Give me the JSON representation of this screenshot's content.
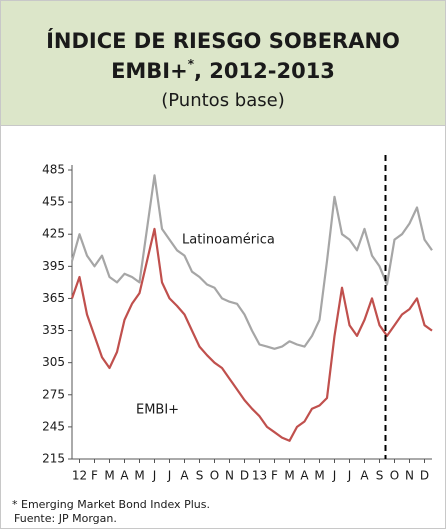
{
  "chart_data": {
    "type": "line",
    "title": "ÍNDICE DE RIESGO SOBERANO",
    "title2": "EMBI+",
    "title2_mark": "*",
    "title2_end": ", 2012-2013",
    "subtitle": "(Puntos base)",
    "footnote": "* Emerging Market Bond Index Plus.",
    "source": "Fuente: JP Morgan.",
    "x": [
      0,
      0.5,
      1,
      1.5,
      2,
      2.5,
      3,
      3.5,
      4,
      4.5,
      5,
      5.5,
      6,
      6.5,
      7,
      7.5,
      8,
      8.5,
      9,
      9.5,
      10,
      10.5,
      11,
      11.5,
      12,
      12.5,
      13,
      13.5,
      14,
      14.5,
      15,
      15.5,
      16,
      16.5,
      17,
      17.5,
      18,
      18.5,
      19,
      19.5,
      20,
      20.5,
      21,
      21.5,
      22,
      22.5,
      23,
      23.5,
      24
    ],
    "series": [
      {
        "name": "Latinoamérica",
        "color": "#a6a6a6",
        "values": [
          400,
          425,
          405,
          395,
          405,
          385,
          380,
          388,
          385,
          380,
          430,
          480,
          430,
          420,
          410,
          405,
          390,
          385,
          378,
          375,
          365,
          362,
          360,
          350,
          335,
          322,
          320,
          318,
          320,
          325,
          322,
          320,
          330,
          345,
          400,
          460,
          425,
          420,
          410,
          430,
          405,
          395,
          378,
          420,
          425,
          435,
          450,
          420,
          410
        ]
      },
      {
        "name": "EMBI+",
        "color": "#c0504d",
        "values": [
          365,
          385,
          350,
          330,
          310,
          300,
          315,
          345,
          360,
          370,
          400,
          430,
          380,
          365,
          358,
          350,
          335,
          320,
          312,
          305,
          300,
          290,
          280,
          270,
          262,
          255,
          245,
          240,
          235,
          232,
          245,
          250,
          262,
          265,
          272,
          330,
          375,
          340,
          330,
          345,
          365,
          340,
          330,
          340,
          350,
          355,
          365,
          340,
          335
        ]
      }
    ],
    "xlim": [
      0,
      24
    ],
    "xticks": [
      {
        "value": 0.5,
        "label": "12"
      },
      {
        "value": 1.5,
        "label": "F"
      },
      {
        "value": 2.5,
        "label": "M"
      },
      {
        "value": 3.5,
        "label": "A"
      },
      {
        "value": 4.5,
        "label": "M"
      },
      {
        "value": 5.5,
        "label": "J"
      },
      {
        "value": 6.5,
        "label": "J"
      },
      {
        "value": 7.5,
        "label": "A"
      },
      {
        "value": 8.5,
        "label": "S"
      },
      {
        "value": 9.5,
        "label": "O"
      },
      {
        "value": 10.5,
        "label": "N"
      },
      {
        "value": 11.5,
        "label": "D"
      },
      {
        "value": 12.5,
        "label": "13"
      },
      {
        "value": 13.5,
        "label": "F"
      },
      {
        "value": 14.5,
        "label": "M"
      },
      {
        "value": 15.5,
        "label": "A"
      },
      {
        "value": 16.5,
        "label": "M"
      },
      {
        "value": 17.5,
        "label": "J"
      },
      {
        "value": 18.5,
        "label": "J"
      },
      {
        "value": 19.5,
        "label": "A"
      },
      {
        "value": 20.5,
        "label": "S"
      },
      {
        "value": 21.5,
        "label": "O"
      },
      {
        "value": 22.5,
        "label": "N"
      },
      {
        "value": 23.5,
        "label": "D"
      }
    ],
    "ylim": [
      215,
      485
    ],
    "yticks": [
      215,
      245,
      275,
      305,
      335,
      365,
      395,
      425,
      455,
      485
    ],
    "vline_x": 20.9
  }
}
